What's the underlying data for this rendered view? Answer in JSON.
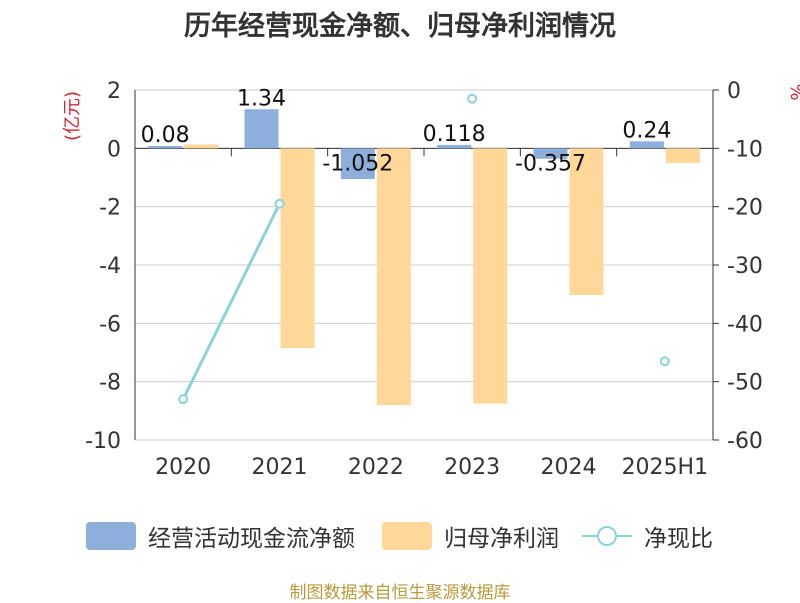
{
  "colors": {
    "operating_cf": "#8eaedb",
    "net_profit": "#ffd899",
    "ratio": "#88d4d8",
    "axis_red": "#d9262d",
    "source": "#b89a3c"
  },
  "chart_data": {
    "type": "bar",
    "title": "历年经营现金净额、归母净利润情况",
    "categories": [
      "2020",
      "2021",
      "2022",
      "2023",
      "2024",
      "2025H1"
    ],
    "left_axis": {
      "unit_label": "(亿元)",
      "range": [
        -10,
        2
      ],
      "ticks": [
        2,
        0,
        -2,
        -4,
        -6,
        -8,
        -10
      ]
    },
    "right_axis": {
      "unit_label": "%",
      "range": [
        -60,
        0
      ],
      "ticks": [
        0,
        -10,
        -20,
        -30,
        -40,
        -50,
        -60
      ]
    },
    "series": [
      {
        "name": "经营活动现金流净额",
        "type": "bar",
        "axis": "left",
        "values": [
          0.08,
          1.34,
          -1.052,
          0.118,
          -0.357,
          0.24
        ],
        "labels": [
          "0.08",
          "1.34",
          "-1.052",
          "0.118",
          "-0.357",
          "0.24"
        ]
      },
      {
        "name": "归母净利润",
        "type": "bar",
        "axis": "left",
        "values": [
          0.13,
          -6.85,
          -8.8,
          -8.75,
          -5.03,
          -0.5
        ]
      },
      {
        "name": "净现比",
        "type": "line",
        "axis": "right",
        "values": [
          -53,
          -19.5,
          null,
          -1.5,
          null,
          -46.5
        ]
      }
    ],
    "legend_position": "bottom",
    "grid": true
  },
  "source_note": "制图数据来自恒生聚源数据库"
}
